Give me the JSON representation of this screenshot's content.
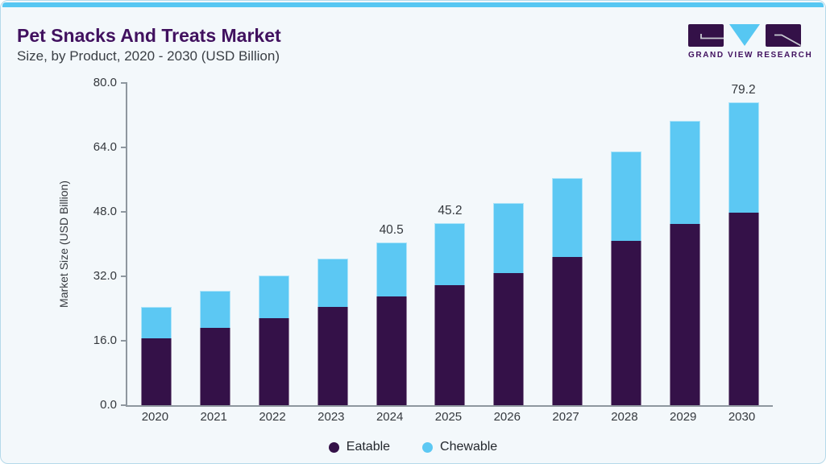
{
  "header": {
    "title": "Pet Snacks And Treats Market",
    "subtitle": "Size, by Product, 2020 - 2030 (USD Billion)"
  },
  "logo": {
    "text": "GRAND VIEW RESEARCH"
  },
  "colors": {
    "accent_strip": "#56c7f2",
    "title_purple": "#41115f",
    "eatable": "#341148",
    "chewable": "#5cc8f3",
    "axis_gray": "#8e979f",
    "text_gray": "#35393e",
    "card_background": "#f3f8fb"
  },
  "chart_data": {
    "type": "bar",
    "stacked": true,
    "title": "Pet Snacks And Treats Market",
    "subtitle": "Size, by Product, 2020 - 2030 (USD Billion)",
    "categories": [
      "2020",
      "2021",
      "2022",
      "2023",
      "2024",
      "2025",
      "2026",
      "2027",
      "2028",
      "2029",
      "2030"
    ],
    "series": [
      {
        "name": "Eatable",
        "color": "#341148",
        "values": [
          16.7,
          19.3,
          21.7,
          24.5,
          27.0,
          29.9,
          32.9,
          36.9,
          40.9,
          45.0,
          50.3
        ]
      },
      {
        "name": "Chewable",
        "color": "#5cc8f3",
        "values": [
          7.7,
          9.2,
          10.5,
          12.0,
          13.5,
          15.3,
          17.4,
          19.6,
          22.2,
          25.6,
          28.9
        ]
      }
    ],
    "totals": [
      24.4,
      28.5,
      32.2,
      36.5,
      40.5,
      45.2,
      50.3,
      56.5,
      63.1,
      70.6,
      79.2
    ],
    "bar_labels": [
      {
        "category": "2024",
        "text": "40.5"
      },
      {
        "category": "2025",
        "text": "45.2"
      },
      {
        "category": "2030",
        "text": "79.2"
      }
    ],
    "xlabel": "",
    "ylabel": "Market Size (USD Billion)",
    "ylim": [
      0,
      80
    ],
    "yticks": [
      "0.0",
      "16.0",
      "32.0",
      "48.0",
      "64.0",
      "80.0"
    ],
    "grid": false,
    "legend_position": "bottom",
    "legend": [
      "Eatable",
      "Chewable"
    ]
  }
}
